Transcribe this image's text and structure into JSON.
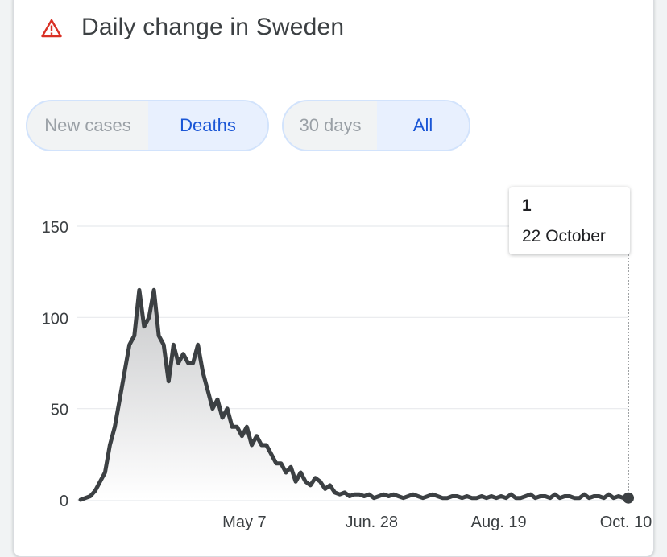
{
  "header": {
    "title": "Daily change in Sweden",
    "icon": "warning-icon",
    "icon_color": "#d93025"
  },
  "metric_toggle": {
    "options": [
      "New cases",
      "Deaths"
    ],
    "selected": "Deaths"
  },
  "range_toggle": {
    "options": [
      "30 days",
      "All"
    ],
    "selected": "All"
  },
  "tooltip": {
    "value": "1",
    "date": "22 October"
  },
  "chart_data": {
    "type": "area",
    "title": "",
    "xlabel": "",
    "ylabel": "",
    "ylim": [
      0,
      150
    ],
    "y_ticks": [
      0,
      50,
      100,
      150
    ],
    "x_ticks": [
      {
        "label": "May 7",
        "x": 67
      },
      {
        "label": "Jun. 28",
        "x": 119
      },
      {
        "label": "Aug. 19",
        "x": 171
      },
      {
        "label": "Oct. 10",
        "x": 223
      }
    ],
    "grid": true,
    "legend": "none",
    "line_color": "#3c4043",
    "x_unit": "day of year",
    "series": [
      {
        "x": [
          72,
          74,
          76,
          78,
          80,
          82,
          84,
          86,
          88,
          90,
          92,
          94,
          96,
          98,
          100,
          102,
          104,
          106,
          108,
          110,
          112,
          114,
          116,
          118,
          120,
          122,
          124,
          126,
          128,
          130,
          132,
          134,
          136,
          138,
          140,
          142,
          144,
          146,
          148,
          150,
          152,
          154,
          156,
          158,
          160,
          162,
          164,
          166,
          168,
          170,
          172,
          174,
          176,
          178,
          180,
          182,
          184,
          186,
          188,
          190,
          192,
          194,
          196,
          198,
          200,
          202,
          204,
          206,
          208,
          210,
          212,
          214,
          216,
          218,
          220,
          222,
          224,
          226,
          228,
          230,
          232,
          234,
          236,
          238,
          240,
          242,
          244,
          246,
          248,
          250,
          252,
          254,
          256,
          258,
          260,
          262,
          264,
          266,
          268,
          270,
          272,
          274,
          276,
          278,
          280,
          282,
          284,
          286,
          288,
          290,
          292,
          294,
          296
        ],
        "values": [
          0,
          1,
          2,
          5,
          10,
          15,
          30,
          40,
          55,
          70,
          85,
          90,
          115,
          95,
          100,
          115,
          90,
          85,
          65,
          85,
          75,
          80,
          75,
          75,
          85,
          70,
          60,
          50,
          55,
          45,
          50,
          40,
          40,
          35,
          40,
          30,
          35,
          30,
          30,
          25,
          20,
          20,
          15,
          18,
          10,
          15,
          10,
          8,
          12,
          10,
          6,
          8,
          4,
          3,
          4,
          2,
          3,
          3,
          2,
          3,
          1,
          2,
          3,
          2,
          3,
          2,
          1,
          2,
          3,
          2,
          1,
          2,
          3,
          2,
          1,
          1,
          2,
          2,
          1,
          2,
          1,
          1,
          2,
          1,
          2,
          1,
          2,
          1,
          3,
          1,
          1,
          2,
          3,
          1,
          2,
          2,
          1,
          3,
          1,
          2,
          2,
          1,
          1,
          3,
          1,
          2,
          2,
          1,
          3,
          1,
          2,
          1,
          1
        ]
      }
    ]
  }
}
